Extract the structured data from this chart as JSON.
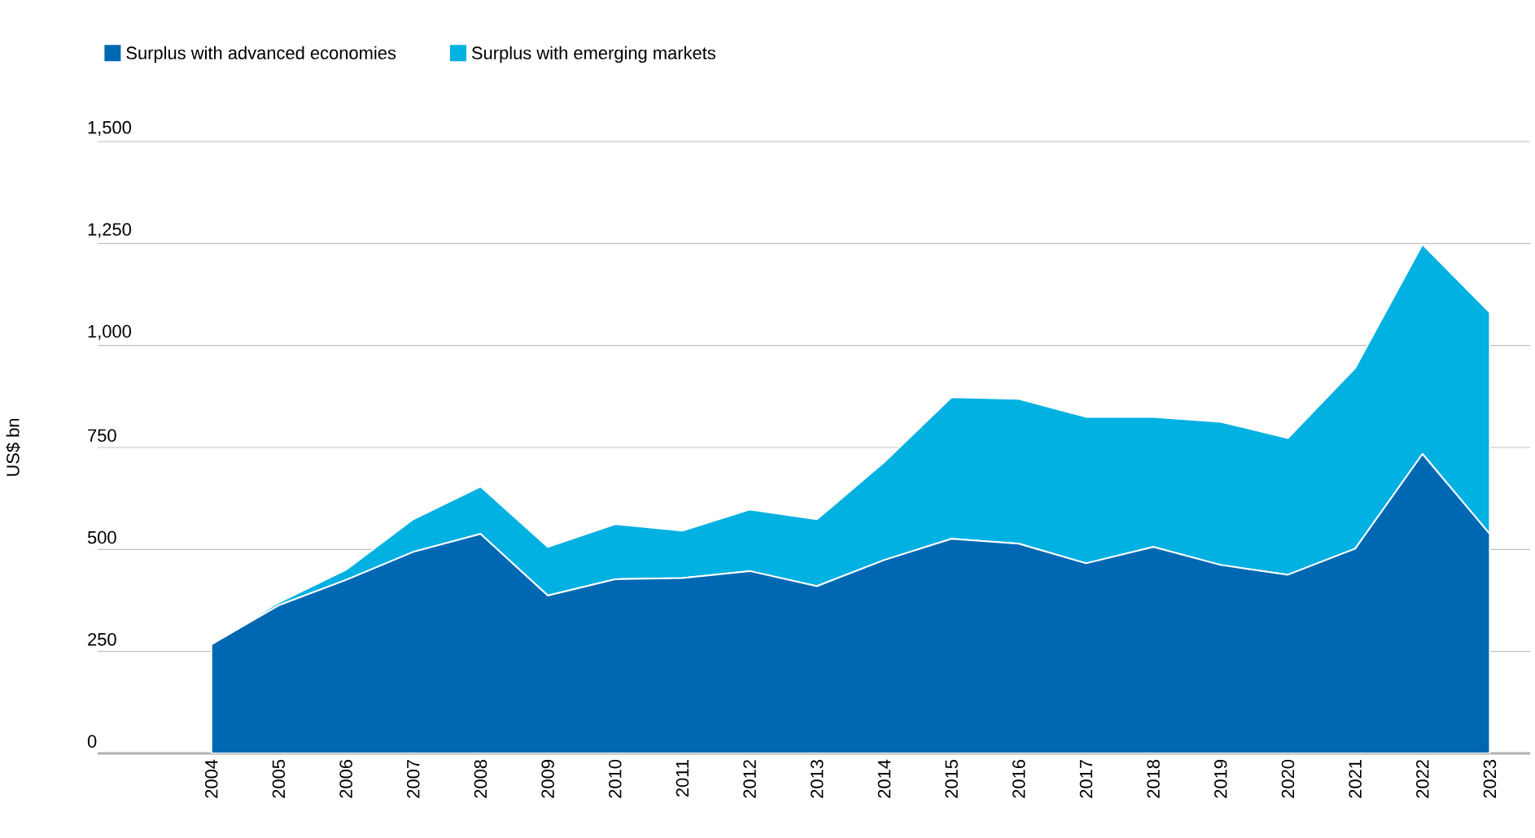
{
  "chart_data": {
    "type": "area",
    "stacked": true,
    "ylabel": "US$ bn",
    "categories": [
      "2004",
      "2005",
      "2006",
      "2007",
      "2008",
      "2009",
      "2010",
      "2011",
      "2012",
      "2013",
      "2014",
      "2015",
      "2016",
      "2017",
      "2018",
      "2019",
      "2020",
      "2021",
      "2022",
      "2023"
    ],
    "series": [
      {
        "name": "Surplus with advanced economies",
        "color": "#0068b3",
        "values": [
          267,
          363,
          425,
          494,
          538,
          387,
          427,
          430,
          447,
          410,
          474,
          526,
          514,
          466,
          506,
          462,
          438,
          502,
          734,
          538
        ]
      },
      {
        "name": "Surplus with emerging markets",
        "color": "#00b1e2",
        "values": [
          0,
          7,
          25,
          80,
          116,
          119,
          135,
          116,
          151,
          164,
          240,
          347,
          355,
          359,
          319,
          351,
          335,
          443,
          514,
          543
        ]
      }
    ],
    "ylim": [
      0,
      1500
    ],
    "yticks": [
      {
        "value": 0,
        "label": "0"
      },
      {
        "value": 250,
        "label": "250"
      },
      {
        "value": 500,
        "label": "500"
      },
      {
        "value": 750,
        "label": "750"
      },
      {
        "value": 1000,
        "label": "1,000"
      },
      {
        "value": 1250,
        "label": "1,250"
      },
      {
        "value": 1500,
        "label": "1,500"
      }
    ],
    "grid": "y",
    "legend": "top left"
  }
}
